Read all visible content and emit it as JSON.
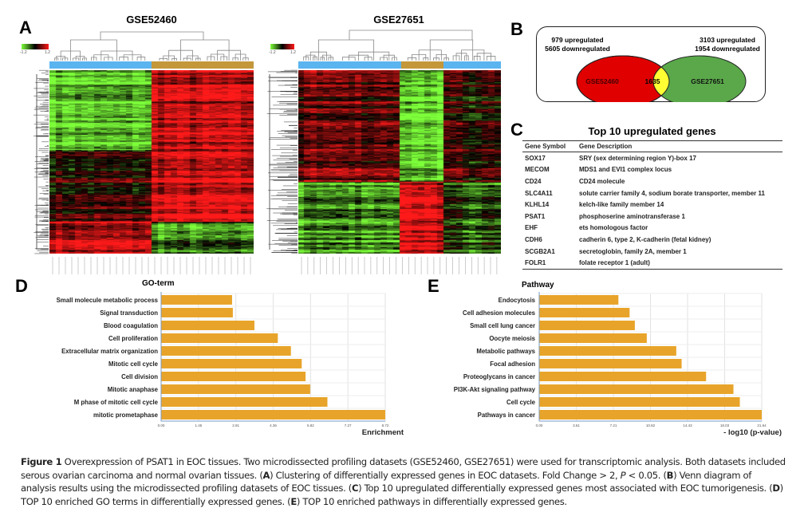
{
  "panel_labels": {
    "a": "A",
    "b": "B",
    "c": "C",
    "d": "D",
    "e": "E"
  },
  "heatmaps": [
    {
      "title": "GSE52460",
      "scale_min": "-1.2",
      "scale_max": "1.2",
      "colors": {
        "group1": "#5ab4f0",
        "group2": "#c3973a",
        "low": "#7dff3a",
        "mid": "#000000",
        "high": "#ff1a1a"
      }
    },
    {
      "title": "GSE27651",
      "scale_min": "-1.2",
      "scale_max": "1.2",
      "colors": {
        "group1": "#5ab4f0",
        "group2": "#c3973a",
        "low": "#7dff3a",
        "mid": "#000000",
        "high": "#ff1a1a"
      }
    }
  ],
  "venn": {
    "left": {
      "name": "GSE52460",
      "line1": "979 upregulated",
      "line2": "5605 downregulated",
      "color": "#e00000"
    },
    "right": {
      "name": "GSE27651",
      "line1": "3103 upregulated",
      "line2": "1954 downregulated",
      "color": "#5aa84a"
    },
    "overlap": {
      "value": "1635",
      "color": "#ffff33"
    }
  },
  "table": {
    "title": "Top 10 upregulated genes",
    "headers": [
      "Gene Symbol",
      "Gene Description"
    ],
    "rows": [
      [
        "SOX17",
        "SRY (sex determining region Y)-box 17"
      ],
      [
        "MECOM",
        "MDS1 and EVI1 complex locus"
      ],
      [
        "CD24",
        "CD24 molecule"
      ],
      [
        "SLC4A11",
        "solute carrier family 4, sodium borate transporter, member 11"
      ],
      [
        "KLHL14",
        "kelch-like family member 14"
      ],
      [
        "PSAT1",
        "phosphoserine aminotransferase 1"
      ],
      [
        "EHF",
        "ets homologous factor"
      ],
      [
        "CDH6",
        "cadherin 6, type 2, K-cadherin (fetal kidney)"
      ],
      [
        "SCGB2A1",
        "secretoglobin, family 2A, member 1"
      ],
      [
        "FOLR1",
        "folate receptor 1 (adult)"
      ]
    ]
  },
  "chart_data": [
    {
      "type": "bar",
      "orientation": "horizontal",
      "title": "GO-term",
      "xlabel": "Enrichment",
      "ylabel": "",
      "xlim": [
        0,
        8.72
      ],
      "xticks": [
        "0.00",
        "1.45",
        "2.91",
        "4.36",
        "5.82",
        "7.27",
        "8.72"
      ],
      "grid": true,
      "bar_color": "#e8a42a",
      "categories": [
        "Small molecule metabolic process",
        "Signal transduction",
        "Blood coagulation",
        "Cell proliferation",
        "Extracellular matrix organization",
        "Mitotic cell cycle",
        "Cell division",
        "Mitotic anaphase",
        "M phase of mitotic cell cycle",
        "mitotic prometaphase"
      ],
      "values": [
        2.76,
        2.79,
        3.63,
        4.54,
        5.05,
        5.47,
        5.62,
        5.8,
        6.47,
        8.72
      ]
    },
    {
      "type": "bar",
      "orientation": "horizontal",
      "title": "Pathway",
      "xlabel": "- log10 (p-value)",
      "ylabel": "",
      "xlim": [
        0,
        21.64
      ],
      "xticks": [
        "0.00",
        "3.61",
        "7.21",
        "10.82",
        "14.43",
        "18.03",
        "21.64"
      ],
      "grid": true,
      "bar_color": "#e8a42a",
      "categories": [
        "Endocytosis",
        "Cell adhesion molecules",
        "Small cell lung cancer",
        "Oocyte meiosis",
        "Metabolic pathways",
        "Focal adhesion",
        "Proteoglycans in cancer",
        "PI3K-Akt signaling pathway",
        "Cell cycle",
        "Pathways in cancer"
      ],
      "values": [
        7.7,
        8.79,
        9.3,
        10.46,
        13.33,
        13.85,
        16.23,
        18.89,
        19.51,
        21.64
      ]
    }
  ],
  "caption": {
    "fig": "Figure 1",
    "parts": [
      " Overexpression of PSAT1 in EOC tissues. Two microdissected profiling datasets (GSE52460, GSE27651) were used for transcriptomic analysis. Both datasets included serous ovarian carcinoma and normal ovarian tissues. (",
      "A",
      ") Clustering of differentially expressed genes in EOC datasets. Fold Change > 2, ",
      "P",
      " < 0.05. (",
      "B",
      ") Venn diagram of analysis results using the microdissected profiling datasets of EOC tissues. (",
      "C",
      ") Top 10 upregulated differentially expressed genes most associated with EOC tumorigenesis. (",
      "D",
      ") TOP 10 enriched GO terms in differentially expressed genes. (",
      "E",
      ") TOP 10 enriched pathways in differentially expressed genes."
    ]
  }
}
